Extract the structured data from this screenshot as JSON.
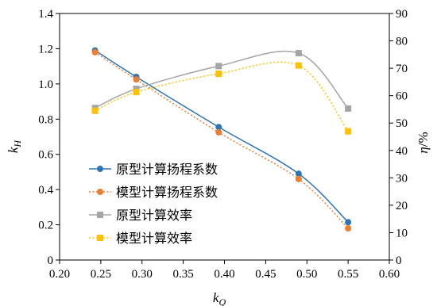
{
  "chart_data": {
    "type": "line",
    "x": [
      0.243,
      0.293,
      0.393,
      0.49,
      0.55
    ],
    "xlim": [
      0.2,
      0.6
    ],
    "x_ticks": [
      "0.20",
      "0.25",
      "0.30",
      "0.35",
      "0.40",
      "0.45",
      "0.50",
      "0.55",
      "0.60"
    ],
    "ylim_left": [
      0,
      1.4
    ],
    "y_ticks_left": [
      "0",
      "0.2",
      "0.4",
      "0.6",
      "0.8",
      "1.0",
      "1.2",
      "1.4"
    ],
    "ylim_right": [
      0,
      90
    ],
    "y_ticks_right": [
      "0",
      "10",
      "20",
      "30",
      "40",
      "50",
      "60",
      "70",
      "80",
      "90"
    ],
    "xlabel": {
      "base": "k",
      "sub": "Q"
    },
    "ylabel_left": {
      "base": "k",
      "sub": "H"
    },
    "ylabel_right": {
      "base": "η",
      "unit": "/%"
    },
    "legend_position": "left-bottom",
    "grid": false,
    "series": [
      {
        "name": "原型计算扬程系数",
        "axis": "left",
        "values": [
          1.19,
          1.04,
          0.755,
          0.49,
          0.215
        ],
        "color": "#2e75b6",
        "marker": "circle",
        "line": "solid"
      },
      {
        "name": "模型计算扬程系数",
        "axis": "left",
        "values": [
          1.18,
          1.025,
          0.725,
          0.46,
          0.18
        ],
        "color": "#ed7d31",
        "marker": "circle",
        "line": "dotted"
      },
      {
        "name": "原型计算效率",
        "axis": "right",
        "values": [
          55.5,
          62.5,
          70.8,
          75.5,
          55.3
        ],
        "color": "#a5a5a5",
        "marker": "square",
        "line": "solid"
      },
      {
        "name": "模型计算效率",
        "axis": "right",
        "values": [
          54.5,
          61.3,
          68.0,
          71.0,
          47.0
        ],
        "color": "#ffc000",
        "marker": "square",
        "line": "dotted"
      }
    ]
  }
}
